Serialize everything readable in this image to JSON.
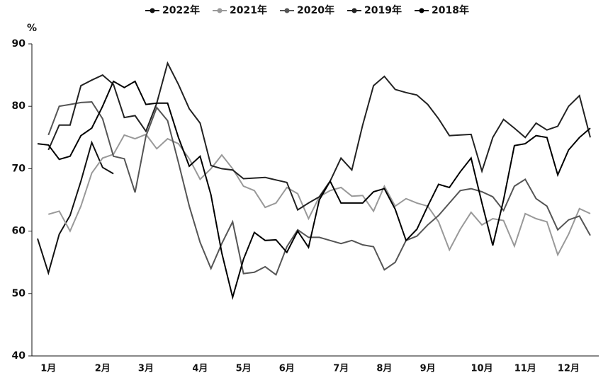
{
  "chart_data": {
    "type": "line",
    "y_label": "%",
    "categories": [
      null,
      "1月",
      null,
      null,
      null,
      null,
      "2月",
      null,
      null,
      null,
      "3月",
      null,
      null,
      null,
      null,
      "4月",
      null,
      null,
      null,
      "5月",
      null,
      null,
      null,
      "6月",
      null,
      null,
      null,
      null,
      "7月",
      null,
      null,
      null,
      "8月",
      null,
      null,
      null,
      "9月",
      null,
      null,
      null,
      null,
      "10月",
      null,
      null,
      null,
      "11月",
      null,
      null,
      null,
      "12月",
      null,
      null
    ],
    "ylim": [
      40,
      90
    ],
    "yticks": [
      40,
      50,
      60,
      70,
      80,
      90
    ],
    "series": [
      {
        "name": "2022年",
        "color": "#111111",
        "values": [
          58.8,
          53.3,
          59.5,
          62.5,
          68,
          74.2,
          70.2,
          69.2,
          null,
          null,
          null,
          null,
          null,
          null,
          null,
          null,
          null,
          null,
          null,
          null,
          null,
          null,
          null,
          null,
          null,
          null,
          null,
          null,
          null,
          null,
          null,
          null,
          null,
          null,
          null,
          null,
          null,
          null,
          null,
          null,
          null,
          null,
          null,
          null,
          null,
          null,
          null,
          null,
          null,
          null,
          null,
          null
        ]
      },
      {
        "name": "2021年",
        "color": "#999999",
        "values": [
          null,
          62.7,
          63.2,
          60,
          64,
          69.3,
          71.7,
          72.3,
          75.4,
          74.8,
          75.5,
          73.2,
          74.8,
          74,
          71.6,
          68.3,
          70,
          72.2,
          70,
          67.2,
          66.5,
          63.8,
          64.5,
          67,
          66,
          62,
          65.5,
          66.5,
          67,
          65.6,
          65.7,
          63.2,
          67.2,
          64,
          65.2,
          64.5,
          64,
          61.5,
          57,
          60.3,
          63,
          61,
          62,
          61.7,
          57.6,
          62.8,
          62,
          61.5,
          56.2,
          59.5,
          63.6,
          62.8
        ]
      },
      {
        "name": "2020年",
        "color": "#555555",
        "values": [
          null,
          75.4,
          80,
          80.3,
          80.6,
          80.7,
          78,
          72,
          71.6,
          66.2,
          75.2,
          79.8,
          77.7,
          71,
          64,
          58.2,
          54,
          58,
          61.5,
          53.2,
          53.4,
          54.3,
          53,
          57.5,
          60.2,
          59,
          59,
          58.5,
          58,
          58.5,
          57.8,
          57.5,
          53.8,
          55,
          58.5,
          59.2,
          61,
          62.5,
          64.5,
          66.5,
          66.8,
          66.3,
          65.5,
          63.3,
          67.2,
          68.3,
          65.2,
          64,
          60.2,
          61.8,
          62.4,
          59.3
        ]
      },
      {
        "name": "2019年",
        "color": "#222222",
        "values": [
          null,
          73,
          77,
          77,
          83.3,
          84.2,
          85,
          83.5,
          78.2,
          78.5,
          76,
          80.5,
          86.9,
          83.5,
          79.6,
          77.3,
          70.5,
          70,
          69.8,
          68.4,
          68.5,
          68.6,
          68.2,
          67.8,
          63.4,
          64.5,
          65.5,
          68,
          71.7,
          69.8,
          77,
          83.3,
          84.8,
          82.7,
          82.2,
          81.8,
          80.3,
          78,
          75.3,
          75.4,
          75.5,
          69.6,
          75,
          77.9,
          76.5,
          75,
          77.3,
          76.2,
          76.8,
          80,
          81.7,
          75
        ]
      },
      {
        "name": "2018年",
        "color": "#000000",
        "values": [
          74,
          73.8,
          71.5,
          72,
          75.3,
          76.5,
          80,
          84,
          83,
          84,
          80.3,
          80.5,
          80.5,
          75,
          70.4,
          72,
          65.8,
          56.5,
          49.4,
          55.5,
          59.8,
          58.5,
          58.6,
          56.6,
          60,
          57.4,
          65,
          68,
          64.5,
          64.5,
          64.5,
          66.3,
          66.8,
          63.5,
          58.5,
          60.3,
          64,
          67.5,
          67,
          69.5,
          71.7,
          64.5,
          57.7,
          65,
          73.7,
          74,
          75.3,
          75,
          69,
          73,
          75,
          76.5
        ]
      }
    ]
  }
}
